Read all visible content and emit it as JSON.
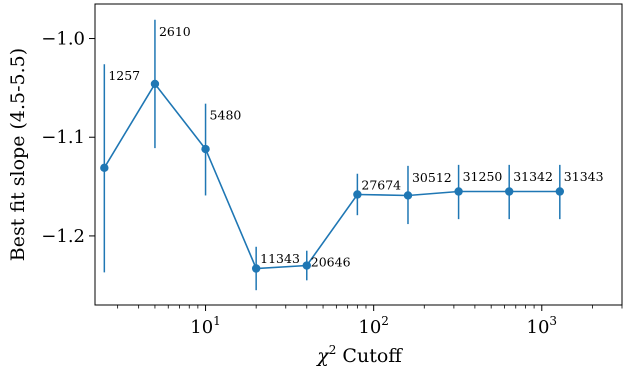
{
  "chart_data": {
    "type": "line",
    "xscale": "log",
    "xlim": [
      2.2,
      3000
    ],
    "ylim": [
      -1.27,
      -0.965
    ],
    "xlabel_base": "χ",
    "xlabel_sup": "2",
    "xlabel_rest": " Cutoff",
    "ylabel": "Best fit slope (4.5-5.5)",
    "x_ticks": [
      {
        "value": 10,
        "base": "10",
        "exp": "1"
      },
      {
        "value": 100,
        "base": "10",
        "exp": "2"
      },
      {
        "value": 1000,
        "base": "10",
        "exp": "3"
      }
    ],
    "y_ticks": [
      {
        "value": -1.0,
        "label": "−1.0"
      },
      {
        "value": -1.1,
        "label": "−1.1"
      },
      {
        "value": -1.2,
        "label": "−1.2"
      }
    ],
    "color": "#1f77b4",
    "grid": false,
    "points": [
      {
        "x": 2.5,
        "y": -1.131,
        "err_low": -1.237,
        "err_high": -1.026,
        "label": "1257"
      },
      {
        "x": 5,
        "y": -1.046,
        "err_low": -1.111,
        "err_high": -0.981,
        "label": "2610"
      },
      {
        "x": 10,
        "y": -1.112,
        "err_low": -1.159,
        "err_high": -1.066,
        "label": "5480"
      },
      {
        "x": 20,
        "y": -1.233,
        "err_low": -1.255,
        "err_high": -1.211,
        "label": "11343"
      },
      {
        "x": 40,
        "y": -1.23,
        "err_low": -1.245,
        "err_high": -1.215,
        "label": "20646"
      },
      {
        "x": 80,
        "y": -1.158,
        "err_low": -1.179,
        "err_high": -1.137,
        "label": "27674"
      },
      {
        "x": 160,
        "y": -1.159,
        "err_low": -1.188,
        "err_high": -1.129,
        "label": "30512"
      },
      {
        "x": 320,
        "y": -1.155,
        "err_low": -1.183,
        "err_high": -1.128,
        "label": "31250"
      },
      {
        "x": 640,
        "y": -1.155,
        "err_low": -1.183,
        "err_high": -1.128,
        "label": "31342"
      },
      {
        "x": 1280,
        "y": -1.155,
        "err_low": -1.183,
        "err_high": -1.128,
        "label": "31343"
      }
    ]
  }
}
